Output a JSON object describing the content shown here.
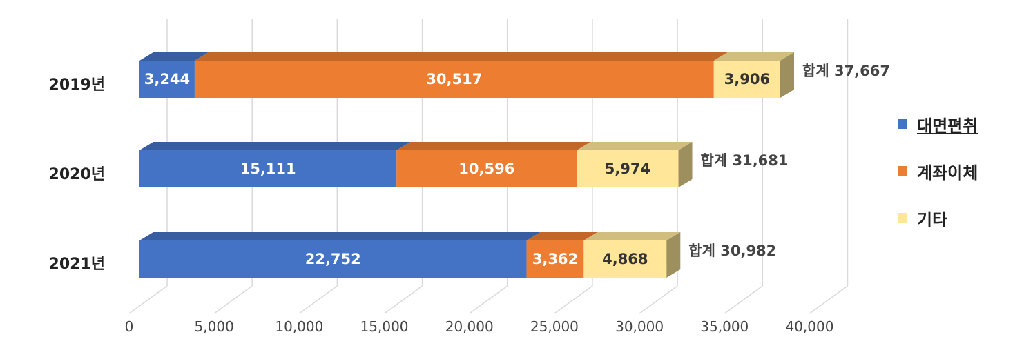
{
  "chart_data": {
    "type": "bar",
    "orientation": "horizontal",
    "stacked": true,
    "style": "3d",
    "categories": [
      "2019년",
      "2020년",
      "2021년"
    ],
    "series": [
      {
        "name": "대면편취",
        "values": [
          3244,
          15111,
          22752
        ],
        "labels": [
          "3,244",
          "15,111",
          "22,752"
        ],
        "color": "#4472C4"
      },
      {
        "name": "계좌이체",
        "values": [
          30517,
          10596,
          3362
        ],
        "labels": [
          "30,517",
          "10,596",
          "3,362"
        ],
        "color": "#ED7D31"
      },
      {
        "name": "기타",
        "values": [
          3906,
          5974,
          4868
        ],
        "labels": [
          "3,906",
          "5,974",
          "4,868"
        ],
        "color": "#FFE699"
      }
    ],
    "totals": [
      "합계 37,667",
      "합계 31,681",
      "합계 30,982"
    ],
    "xlim": [
      0,
      40000
    ],
    "xticks": [
      0,
      5000,
      10000,
      15000,
      20000,
      25000,
      30000,
      35000,
      40000
    ],
    "xtick_labels": [
      "0",
      "5,000",
      "10,000",
      "15,000",
      "20,000",
      "25,000",
      "30,000",
      "35,000",
      "40,000"
    ],
    "grid": true,
    "legend_position": "right"
  }
}
